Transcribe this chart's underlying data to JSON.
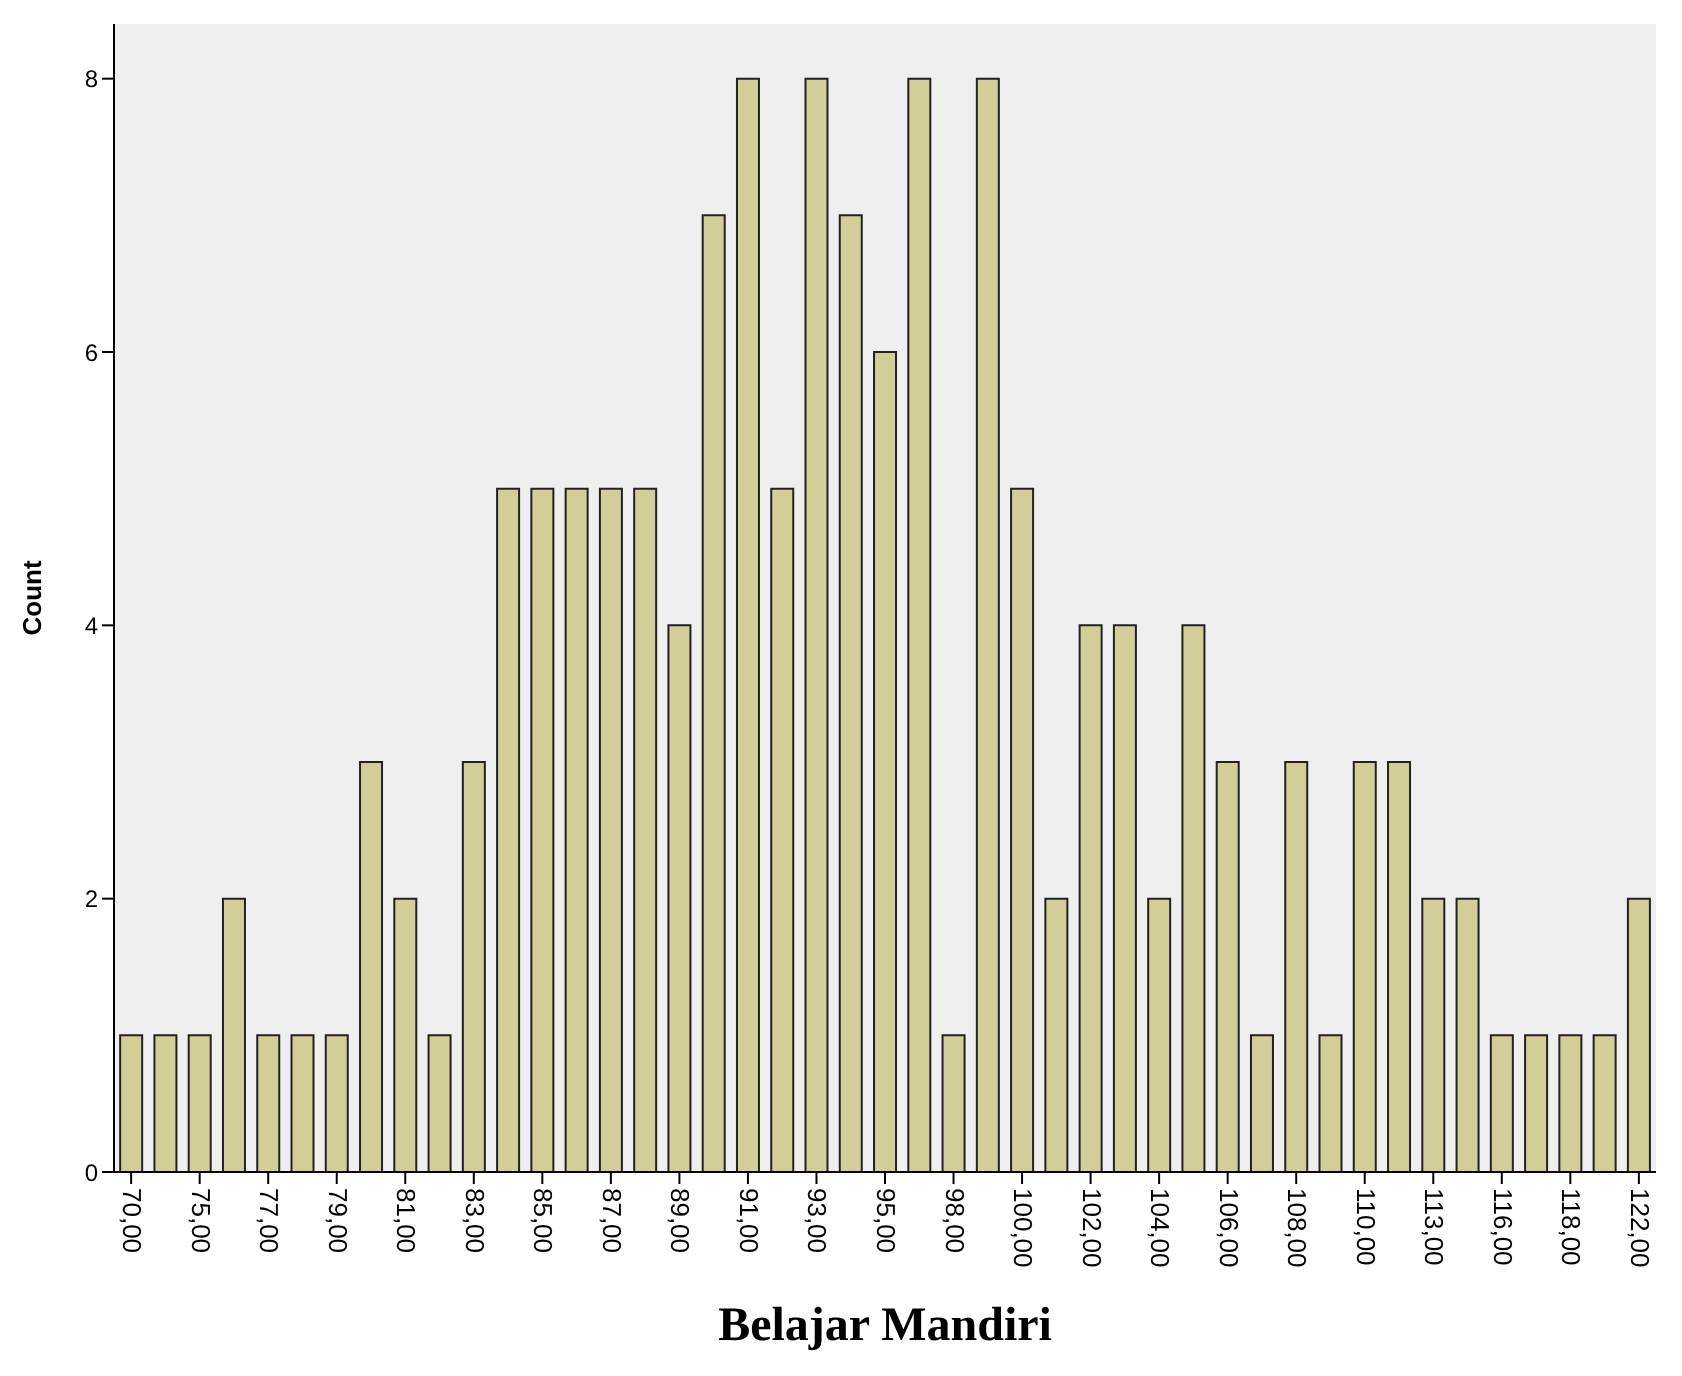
{
  "chart_data": {
    "type": "bar",
    "xlabel": "Belajar Mandiri",
    "ylabel": "Count",
    "categories": [
      "70,00",
      null,
      "75,00",
      null,
      "77,00",
      null,
      "79,00",
      null,
      "81,00",
      null,
      "83,00",
      null,
      "85,00",
      null,
      "87,00",
      null,
      "89,00",
      null,
      "91,00",
      null,
      "93,00",
      null,
      "95,00",
      null,
      "98,00",
      null,
      "100,00",
      null,
      "102,00",
      null,
      "104,00",
      null,
      "106,00",
      null,
      "108,00",
      null,
      "110,00",
      null,
      "113,00",
      null,
      "116,00",
      null,
      "118,00",
      null,
      "122,00"
    ],
    "values": [
      1,
      1,
      1,
      2,
      1,
      1,
      1,
      3,
      2,
      1,
      3,
      5,
      5,
      5,
      5,
      5,
      4,
      7,
      8,
      5,
      8,
      7,
      6,
      8,
      1,
      8,
      5,
      2,
      4,
      4,
      2,
      4,
      3,
      1,
      3,
      1,
      3,
      3,
      2,
      2,
      1,
      1,
      1,
      1,
      2
    ],
    "color": "#d3ce97",
    "ylim": [
      0,
      8.4
    ],
    "yticks": [
      0,
      2,
      4,
      6,
      8
    ],
    "grid": false,
    "legend": false
  }
}
